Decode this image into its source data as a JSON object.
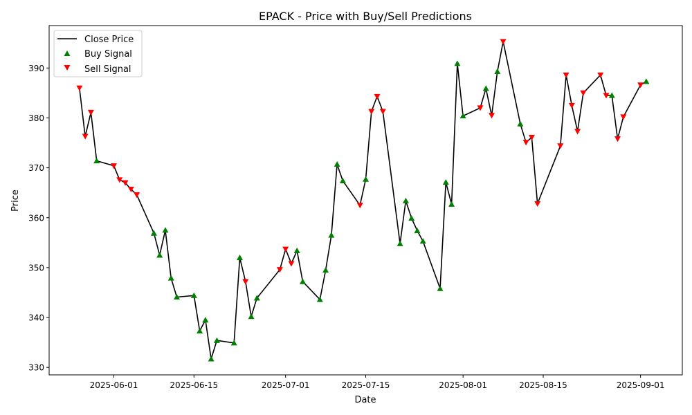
{
  "chart_data": {
    "type": "line",
    "title": "EPACK - Price with Buy/Sell Predictions",
    "xlabel": "Date",
    "ylabel": "Price",
    "x_start_date": "2025-05-26",
    "xlim_days": [
      -5.3,
      105.3
    ],
    "ylim": [
      328.5,
      398.5
    ],
    "y_ticks": [
      330,
      340,
      350,
      360,
      370,
      380,
      390
    ],
    "x_ticks": [
      {
        "day": 6,
        "label": "2025-06-01"
      },
      {
        "day": 20,
        "label": "2025-06-15"
      },
      {
        "day": 36,
        "label": "2025-07-01"
      },
      {
        "day": 50,
        "label": "2025-07-15"
      },
      {
        "day": 67,
        "label": "2025-08-01"
      },
      {
        "day": 81,
        "label": "2025-08-15"
      },
      {
        "day": 98,
        "label": "2025-09-01"
      }
    ],
    "grid": false,
    "legend_position": "upper left",
    "legend": [
      {
        "label": "Close Price",
        "kind": "line",
        "color": "#000000"
      },
      {
        "label": "Buy Signal",
        "kind": "up-triangle",
        "color": "#008000"
      },
      {
        "label": "Sell Signal",
        "kind": "down-triangle",
        "color": "#ff0000"
      }
    ],
    "series": [
      {
        "name": "Close Price",
        "color": "#000000",
        "points": [
          {
            "day": 0,
            "price": 386.0,
            "signal": "sell"
          },
          {
            "day": 1,
            "price": 376.3,
            "signal": "sell"
          },
          {
            "day": 2,
            "price": 381.1,
            "signal": "sell"
          },
          {
            "day": 3,
            "price": 371.4,
            "signal": "buy"
          },
          {
            "day": 6,
            "price": 370.4,
            "signal": "sell"
          },
          {
            "day": 7,
            "price": 367.6,
            "signal": "sell"
          },
          {
            "day": 8,
            "price": 367.0,
            "signal": "sell"
          },
          {
            "day": 9,
            "price": 365.7,
            "signal": "sell"
          },
          {
            "day": 10,
            "price": 364.6,
            "signal": "sell"
          },
          {
            "day": 13,
            "price": 356.9,
            "signal": "buy"
          },
          {
            "day": 14,
            "price": 352.5,
            "signal": "buy"
          },
          {
            "day": 15,
            "price": 357.5,
            "signal": "buy"
          },
          {
            "day": 16,
            "price": 347.9,
            "signal": "buy"
          },
          {
            "day": 17,
            "price": 344.1,
            "signal": "buy"
          },
          {
            "day": 20,
            "price": 344.4,
            "signal": "buy"
          },
          {
            "day": 21,
            "price": 337.3,
            "signal": "buy"
          },
          {
            "day": 22,
            "price": 339.5,
            "signal": "buy"
          },
          {
            "day": 23,
            "price": 331.7,
            "signal": "buy"
          },
          {
            "day": 24,
            "price": 335.4,
            "signal": "buy"
          },
          {
            "day": 27,
            "price": 334.9,
            "signal": "buy"
          },
          {
            "day": 28,
            "price": 352.0,
            "signal": "buy"
          },
          {
            "day": 29,
            "price": 347.2,
            "signal": "sell"
          },
          {
            "day": 30,
            "price": 340.2,
            "signal": "buy"
          },
          {
            "day": 31,
            "price": 343.9,
            "signal": "buy"
          },
          {
            "day": 35,
            "price": 349.6,
            "signal": "sell"
          },
          {
            "day": 36,
            "price": 353.7,
            "signal": "sell"
          },
          {
            "day": 37,
            "price": 350.8,
            "signal": "sell"
          },
          {
            "day": 38,
            "price": 353.4,
            "signal": "buy"
          },
          {
            "day": 39,
            "price": 347.2,
            "signal": "buy"
          },
          {
            "day": 42,
            "price": 343.6,
            "signal": "buy"
          },
          {
            "day": 43,
            "price": 349.5,
            "signal": "buy"
          },
          {
            "day": 44,
            "price": 356.5,
            "signal": "buy"
          },
          {
            "day": 45,
            "price": 370.7,
            "signal": "buy"
          },
          {
            "day": 46,
            "price": 367.4,
            "signal": "buy"
          },
          {
            "day": 49,
            "price": 362.5,
            "signal": "sell"
          },
          {
            "day": 50,
            "price": 367.7,
            "signal": "buy"
          },
          {
            "day": 51,
            "price": 381.3,
            "signal": "sell"
          },
          {
            "day": 52,
            "price": 384.3,
            "signal": "sell"
          },
          {
            "day": 53,
            "price": 381.3,
            "signal": "sell"
          },
          {
            "day": 56,
            "price": 354.8,
            "signal": "buy"
          },
          {
            "day": 57,
            "price": 363.4,
            "signal": "buy"
          },
          {
            "day": 58,
            "price": 359.9,
            "signal": "buy"
          },
          {
            "day": 59,
            "price": 357.4,
            "signal": "buy"
          },
          {
            "day": 60,
            "price": 355.3,
            "signal": "buy"
          },
          {
            "day": 63,
            "price": 345.8,
            "signal": "buy"
          },
          {
            "day": 64,
            "price": 367.1,
            "signal": "buy"
          },
          {
            "day": 65,
            "price": 362.7,
            "signal": "buy"
          },
          {
            "day": 66,
            "price": 390.9,
            "signal": "buy"
          },
          {
            "day": 67,
            "price": 380.4,
            "signal": "buy"
          },
          {
            "day": 70,
            "price": 382.0,
            "signal": "sell"
          },
          {
            "day": 71,
            "price": 385.9,
            "signal": "buy"
          },
          {
            "day": 72,
            "price": 380.5,
            "signal": "sell"
          },
          {
            "day": 73,
            "price": 389.3,
            "signal": "buy"
          },
          {
            "day": 74,
            "price": 395.3,
            "signal": "sell"
          },
          {
            "day": 77,
            "price": 378.8,
            "signal": "buy"
          },
          {
            "day": 78,
            "price": 375.1,
            "signal": "sell"
          },
          {
            "day": 79,
            "price": 376.1,
            "signal": "sell"
          },
          {
            "day": 80,
            "price": 362.8,
            "signal": "sell"
          },
          {
            "day": 84,
            "price": 374.4,
            "signal": "sell"
          },
          {
            "day": 85,
            "price": 388.6,
            "signal": "sell"
          },
          {
            "day": 86,
            "price": 382.5,
            "signal": "sell"
          },
          {
            "day": 87,
            "price": 377.3,
            "signal": "sell"
          },
          {
            "day": 88,
            "price": 385.0,
            "signal": "sell"
          },
          {
            "day": 91,
            "price": 388.6,
            "signal": "sell"
          },
          {
            "day": 92,
            "price": 384.5,
            "signal": "sell"
          },
          {
            "day": 93,
            "price": 384.5,
            "signal": "buy"
          },
          {
            "day": 94,
            "price": 375.8,
            "signal": "sell"
          },
          {
            "day": 95,
            "price": 380.2,
            "signal": "sell"
          },
          {
            "day": 98,
            "price": 386.6,
            "signal": "sell"
          },
          {
            "day": 99,
            "price": 387.3,
            "signal": "buy"
          }
        ]
      }
    ]
  }
}
